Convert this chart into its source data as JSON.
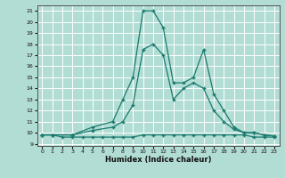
{
  "xlabel": "Humidex (Indice chaleur)",
  "bg_color": "#b2ddd4",
  "grid_color": "#ffffff",
  "line_color": "#1a7a6e",
  "xlim": [
    -0.5,
    23.5
  ],
  "ylim": [
    8.8,
    21.5
  ],
  "xticks": [
    0,
    1,
    2,
    3,
    4,
    5,
    6,
    7,
    8,
    9,
    10,
    11,
    12,
    13,
    14,
    15,
    16,
    17,
    18,
    19,
    20,
    21,
    22,
    23
  ],
  "yticks": [
    9,
    10,
    11,
    12,
    13,
    14,
    15,
    16,
    17,
    18,
    19,
    20,
    21
  ],
  "curve1_x": [
    0,
    1,
    3,
    5,
    7,
    8,
    9,
    10,
    11,
    12,
    13,
    14,
    15,
    16,
    17,
    18,
    19,
    20,
    21,
    22,
    23
  ],
  "curve1_y": [
    9.8,
    9.8,
    9.8,
    10.5,
    11.0,
    13.0,
    15.0,
    21.0,
    21.0,
    19.5,
    14.5,
    14.5,
    15.0,
    17.5,
    13.5,
    12.0,
    10.5,
    10.0,
    10.0,
    9.8,
    9.7
  ],
  "curve2_x": [
    0,
    1,
    3,
    5,
    7,
    8,
    9,
    10,
    11,
    12,
    13,
    14,
    15,
    16,
    17,
    18,
    19,
    20,
    21,
    22,
    23
  ],
  "curve2_y": [
    9.8,
    9.8,
    9.8,
    10.2,
    10.5,
    11.0,
    12.5,
    17.5,
    18.0,
    17.0,
    13.0,
    14.0,
    14.5,
    14.0,
    12.0,
    11.0,
    10.3,
    10.0,
    10.0,
    9.8,
    9.7
  ],
  "curve3_x": [
    0,
    1,
    2,
    3,
    4,
    5,
    6,
    7,
    8,
    9,
    10,
    11,
    12,
    13,
    14,
    15,
    16,
    17,
    18,
    19,
    20,
    21,
    22,
    23
  ],
  "curve3_y": [
    9.8,
    9.8,
    9.6,
    9.6,
    9.6,
    9.6,
    9.6,
    9.6,
    9.6,
    9.6,
    9.8,
    9.8,
    9.8,
    9.8,
    9.8,
    9.8,
    9.8,
    9.8,
    9.8,
    9.8,
    9.8,
    9.6,
    9.6,
    9.6
  ]
}
